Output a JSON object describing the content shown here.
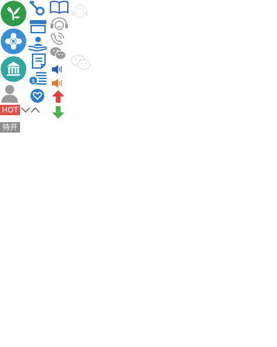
{
  "badges": {
    "hot": "HOT",
    "pending": "待开"
  },
  "icons": [
    "leaf-logo-icon",
    "network-logo-icon",
    "bank-logo-icon",
    "user-icon",
    "key-icon",
    "storefront-icon",
    "hand-person-icon",
    "document-icon",
    "coins-list-icon",
    "heart-icon",
    "book-icon",
    "headset-icon",
    "phone-icon",
    "wechat-icon",
    "speaker-icon",
    "arrow-up-icon",
    "arrow-down-icon",
    "chevron-down-icon",
    "chevron-up-icon"
  ],
  "colors": {
    "green": "#2e9a4a",
    "blue": "#3a8ed8",
    "teal": "#32a6a3",
    "gray": "#9a9a9a",
    "red": "#e0504a",
    "orange": "#ea7a2a",
    "speaker_blue": "#2e5fae",
    "arrow_red": "#e0403a",
    "arrow_green": "#4caf50"
  }
}
